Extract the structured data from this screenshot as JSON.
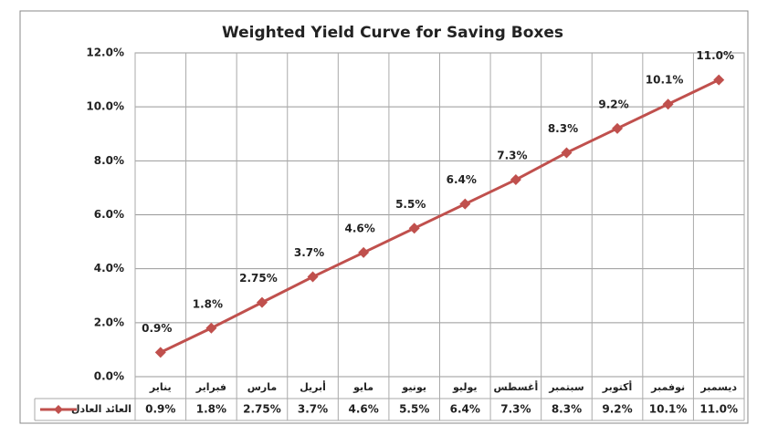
{
  "chart_data": {
    "type": "line",
    "title": "Weighted Yield Curve for Saving Boxes",
    "categories": [
      "يناير",
      "فبراير",
      "مارس",
      "أبريل",
      "مايو",
      "يونيو",
      "يوليو",
      "أغسطس",
      "سبتمبر",
      "أكتوبر",
      "نوفمبر",
      "ديسمبر"
    ],
    "series": [
      {
        "name": "العائد العادل",
        "color": "#c0504d",
        "values": [
          0.9,
          1.8,
          2.75,
          3.7,
          4.6,
          5.5,
          6.4,
          7.3,
          8.3,
          9.2,
          10.1,
          11.0
        ],
        "value_labels": [
          "0.9%",
          "1.8%",
          "2.75%",
          "3.7%",
          "4.6%",
          "5.5%",
          "6.4%",
          "7.3%",
          "8.3%",
          "9.2%",
          "10.1%",
          "11.0%"
        ]
      }
    ],
    "ylim": [
      0,
      12
    ],
    "yticks": [
      {
        "value": 0,
        "label": "0.0%"
      },
      {
        "value": 2,
        "label": "2.0%"
      },
      {
        "value": 4,
        "label": "4.0%"
      },
      {
        "value": 6,
        "label": "6.0%"
      },
      {
        "value": 8,
        "label": "8.0%"
      },
      {
        "value": 10,
        "label": "10.0%"
      },
      {
        "value": 12,
        "label": "12.0%"
      }
    ],
    "grid": true,
    "data_table": true
  }
}
